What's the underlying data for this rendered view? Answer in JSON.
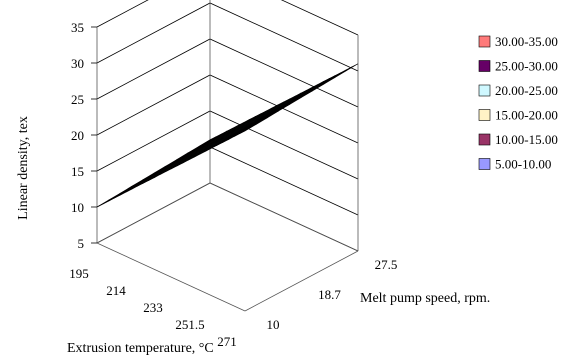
{
  "chart_data": {
    "type": "surface",
    "title": "",
    "xlabel": "Extrusion temperature, °C",
    "ylabel": "Linear density, tex",
    "zlabel": "Melt pump speed, rpm.",
    "x_ticks": [
      "195",
      "214",
      "233",
      "251.5",
      "271"
    ],
    "z_ticks": [
      "10",
      "18.7",
      "27.5"
    ],
    "y_ticks": [
      "5",
      "10",
      "15",
      "20",
      "25",
      "30",
      "35"
    ],
    "ylim": [
      5,
      35
    ],
    "grid": true,
    "legend_position": "right",
    "surface_corners": {
      "x195_speed10": 10,
      "x195_speed27.5": 11,
      "x271_speed10": 30,
      "x271_speed27.5": 31
    },
    "legend": [
      {
        "label": "30.00-35.00",
        "color": "#ff7a7a"
      },
      {
        "label": "25.00-30.00",
        "color": "#660066"
      },
      {
        "label": "20.00-25.00",
        "color": "#cff8ff"
      },
      {
        "label": "15.00-20.00",
        "color": "#fff3c6"
      },
      {
        "label": "10.00-15.00",
        "color": "#993366"
      },
      {
        "label": "5.00-10.00",
        "color": "#9999ff"
      }
    ]
  }
}
